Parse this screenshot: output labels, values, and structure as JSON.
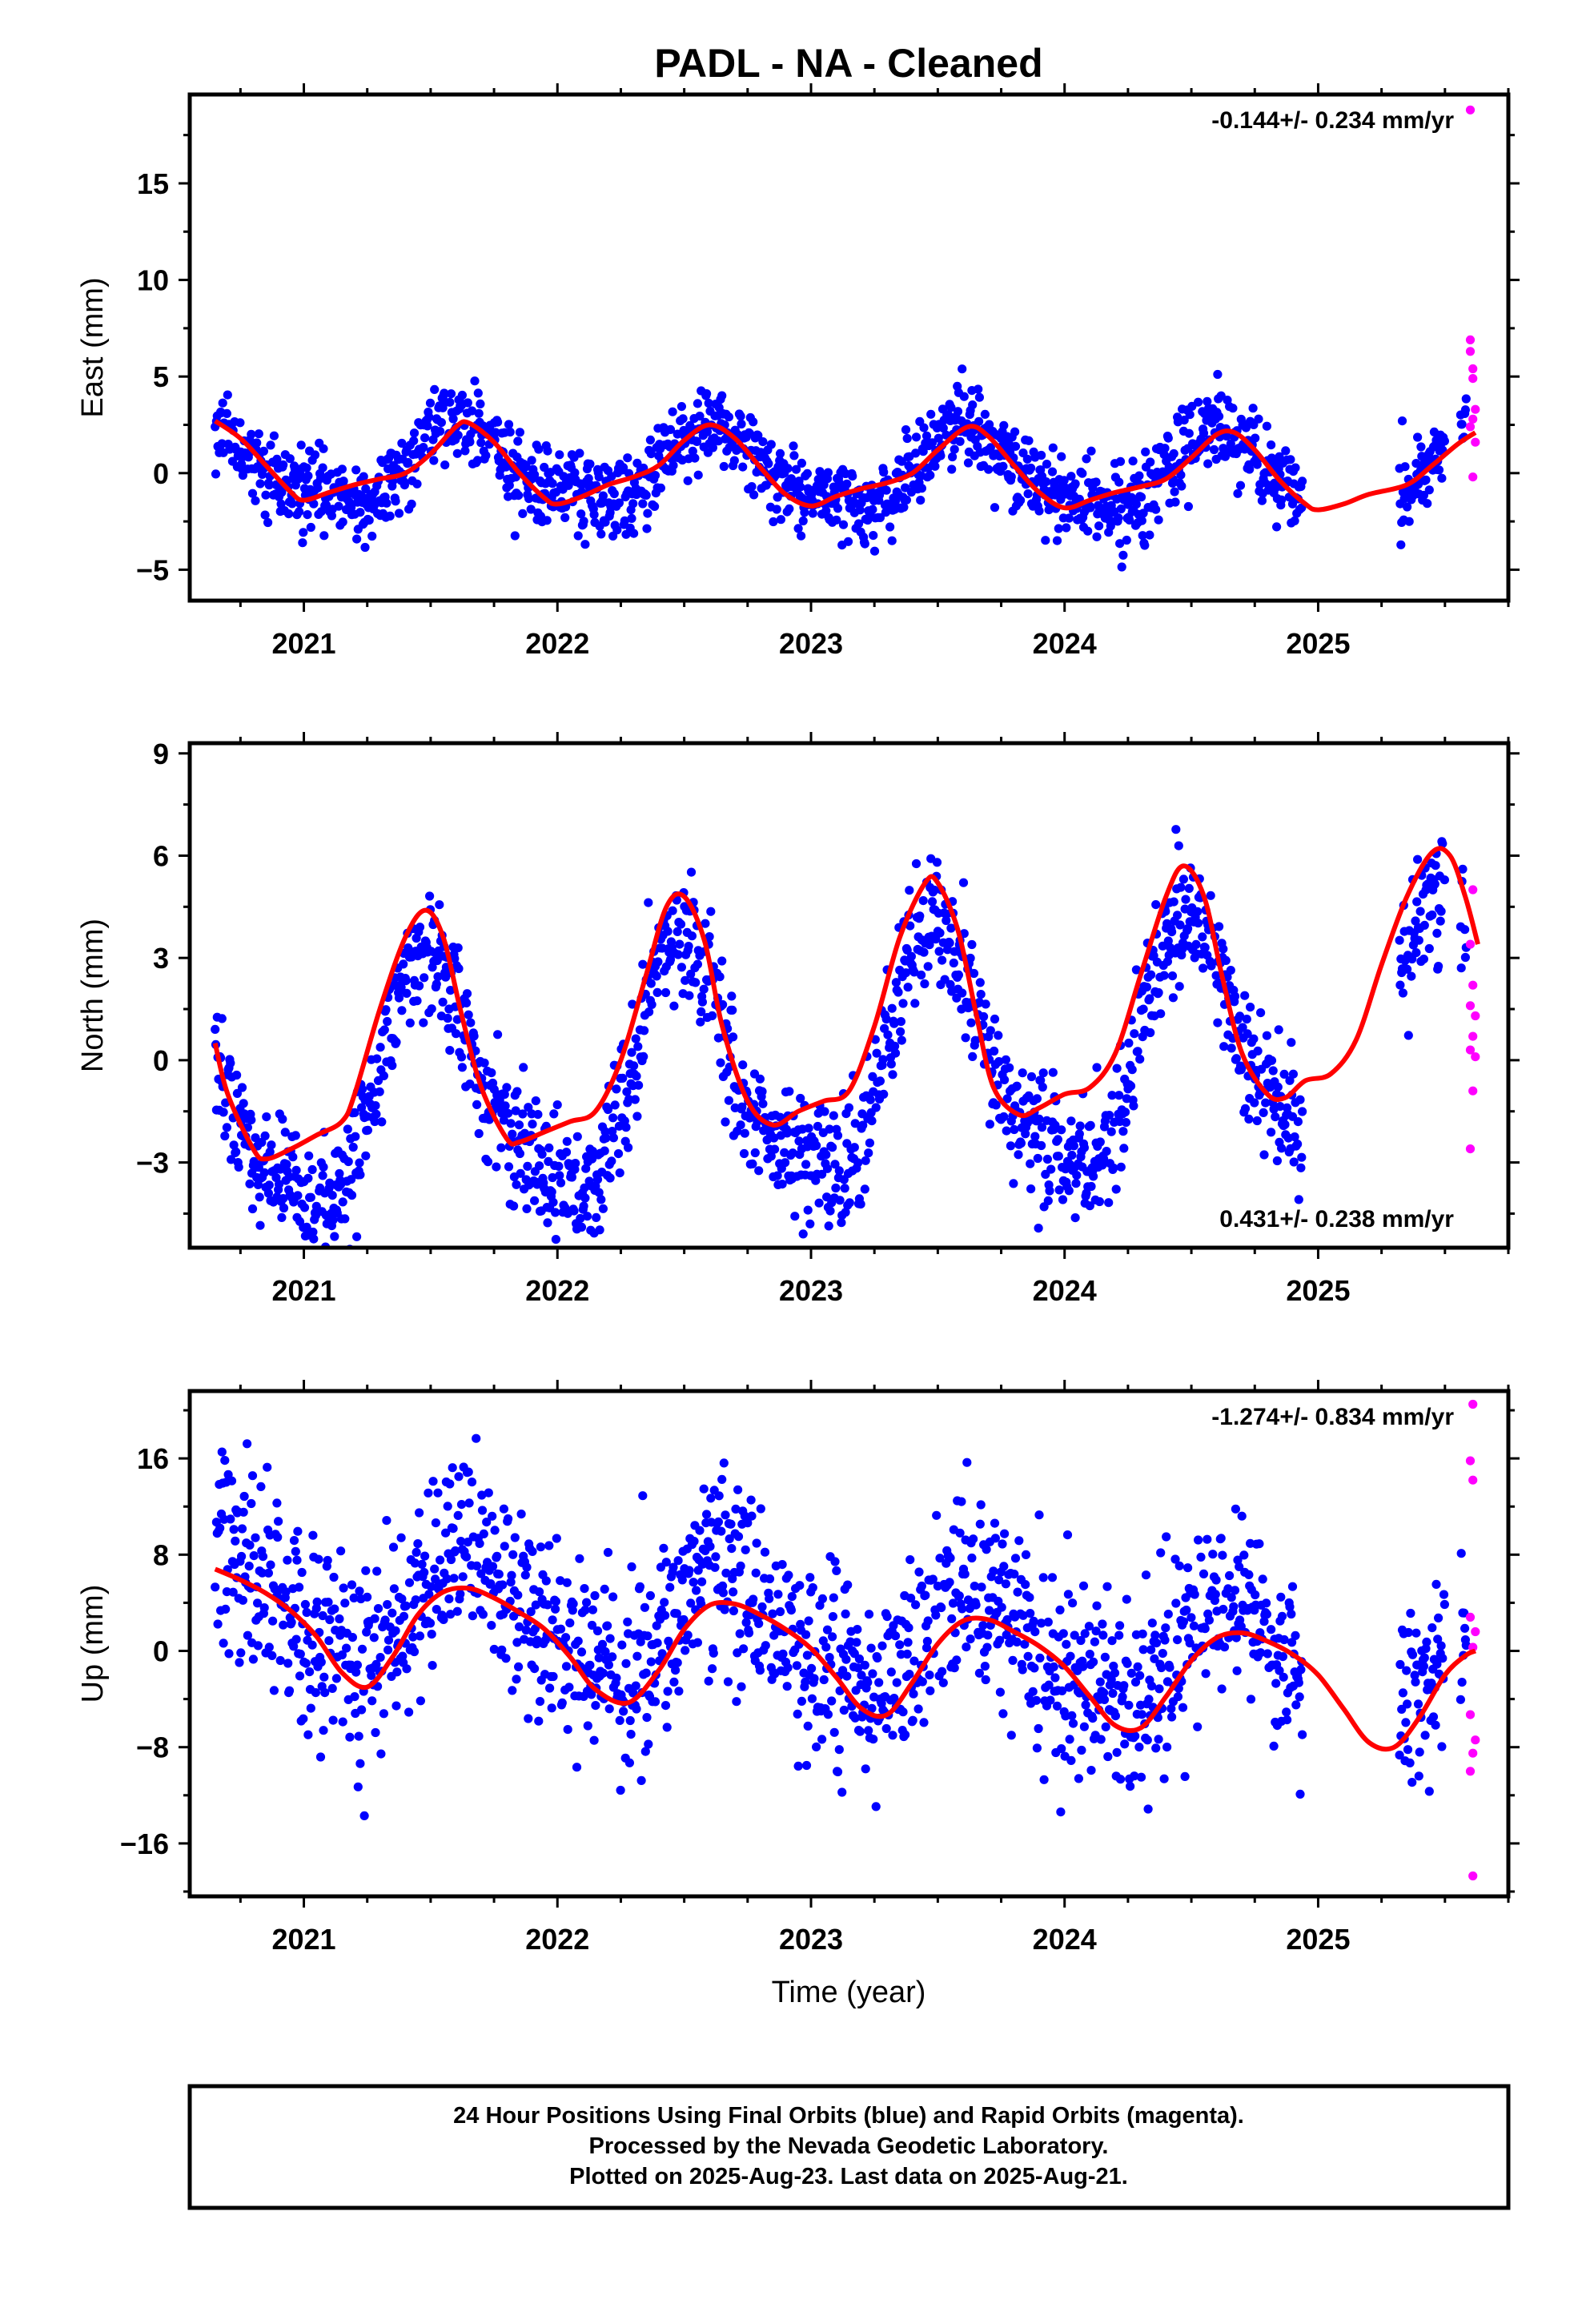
{
  "title": "PADL  - NA - Cleaned",
  "xlabel": "Time (year)",
  "footer": [
    "24 Hour Positions Using Final Orbits (blue) and Rapid Orbits (magenta).",
    "Processed by the Nevada Geodetic Laboratory.",
    "Plotted on 2025-Aug-23. Last data on 2025-Aug-21."
  ],
  "colors": {
    "final": "#0000ff",
    "rapid": "#ff00ff",
    "fit": "#ff0000",
    "frame": "#000000"
  },
  "chart_data": [
    {
      "type": "scatter",
      "ylabel": "East (mm)",
      "rate": "-0.144+/- 0.234 mm/yr",
      "rate_position": "top-right",
      "xlim": [
        2020.55,
        2025.75
      ],
      "ylim": [
        -6.6,
        19.6
      ],
      "xticks": [
        2021,
        2022,
        2023,
        2024,
        2025
      ],
      "xtick_labels": [
        "2021",
        "2022",
        "2023",
        "2024",
        "2025"
      ],
      "yticks": [
        -5,
        0,
        5,
        10,
        15
      ],
      "ytick_labels": [
        "−5",
        "0",
        "5",
        "10",
        "15"
      ],
      "model": {
        "t0": 2020.65,
        "offset": 0.12,
        "trend": -0.144,
        "annual_amp": 1.9,
        "annual_peak": 0.62,
        "semiannual_amp": 0.55,
        "noise": 1.05
      },
      "rapid_points": [
        [
          2025.6,
          18.8
        ],
        [
          2025.6,
          6.9
        ],
        [
          2025.6,
          6.3
        ],
        [
          2025.61,
          5.4
        ],
        [
          2025.61,
          4.9
        ],
        [
          2025.62,
          3.3
        ],
        [
          2025.61,
          2.8
        ],
        [
          2025.6,
          2.4
        ],
        [
          2025.62,
          1.6
        ],
        [
          2025.61,
          -0.2
        ]
      ],
      "fit_curve": [
        [
          2020.65,
          2.7
        ],
        [
          2020.75,
          1.8
        ],
        [
          2020.85,
          0.4
        ],
        [
          2020.95,
          -1.0
        ],
        [
          2021.0,
          -1.4
        ],
        [
          2021.1,
          -1.0
        ],
        [
          2021.2,
          -0.6
        ],
        [
          2021.3,
          -0.3
        ],
        [
          2021.4,
          0.0
        ],
        [
          2021.5,
          1.0
        ],
        [
          2021.6,
          2.4
        ],
        [
          2021.65,
          2.6
        ],
        [
          2021.75,
          1.6
        ],
        [
          2021.85,
          0.0
        ],
        [
          2021.95,
          -1.3
        ],
        [
          2022.0,
          -1.6
        ],
        [
          2022.1,
          -1.2
        ],
        [
          2022.2,
          -0.6
        ],
        [
          2022.3,
          -0.2
        ],
        [
          2022.4,
          0.4
        ],
        [
          2022.5,
          1.7
        ],
        [
          2022.6,
          2.5
        ],
        [
          2022.7,
          1.8
        ],
        [
          2022.8,
          0.3
        ],
        [
          2022.9,
          -1.1
        ],
        [
          2023.0,
          -1.7
        ],
        [
          2023.1,
          -1.2
        ],
        [
          2023.2,
          -0.8
        ],
        [
          2023.3,
          -0.5
        ],
        [
          2023.4,
          0.0
        ],
        [
          2023.5,
          1.2
        ],
        [
          2023.62,
          2.4
        ],
        [
          2023.7,
          1.9
        ],
        [
          2023.8,
          0.4
        ],
        [
          2023.9,
          -1.0
        ],
        [
          2024.0,
          -1.8
        ],
        [
          2024.1,
          -1.4
        ],
        [
          2024.2,
          -1.0
        ],
        [
          2024.3,
          -0.7
        ],
        [
          2024.4,
          -0.3
        ],
        [
          2024.5,
          0.8
        ],
        [
          2024.6,
          2.0
        ],
        [
          2024.67,
          2.1
        ],
        [
          2024.75,
          1.2
        ],
        [
          2024.85,
          -0.4
        ],
        [
          2024.95,
          -1.6
        ],
        [
          2025.0,
          -1.9
        ],
        [
          2025.1,
          -1.6
        ],
        [
          2025.2,
          -1.1
        ],
        [
          2025.35,
          -0.6
        ],
        [
          2025.45,
          0.4
        ],
        [
          2025.55,
          1.5
        ],
        [
          2025.62,
          2.1
        ]
      ]
    },
    {
      "type": "scatter",
      "ylabel": "North (mm)",
      "rate": "0.431+/- 0.238 mm/yr",
      "rate_position": "bottom-right",
      "xlim": [
        2020.55,
        2025.75
      ],
      "ylim": [
        -5.5,
        9.3
      ],
      "xticks": [
        2021,
        2022,
        2023,
        2024,
        2025
      ],
      "xtick_labels": [
        "2021",
        "2022",
        "2023",
        "2024",
        "2025"
      ],
      "yticks": [
        -3,
        0,
        3,
        6,
        9
      ],
      "ytick_labels": [
        "−3",
        "0",
        "3",
        "6",
        "9"
      ],
      "model": {
        "t0": 2020.65,
        "offset": -0.4,
        "trend": 0.431,
        "annual_amp": 3.5,
        "annual_peak": 0.5,
        "semiannual_amp": 0.9,
        "noise": 0.95
      },
      "rapid_points": [
        [
          2025.61,
          5.0
        ],
        [
          2025.6,
          3.4
        ],
        [
          2025.61,
          2.2
        ],
        [
          2025.6,
          1.6
        ],
        [
          2025.62,
          1.3
        ],
        [
          2025.61,
          0.7
        ],
        [
          2025.6,
          0.3
        ],
        [
          2025.62,
          0.1
        ],
        [
          2025.61,
          -0.9
        ],
        [
          2025.6,
          -2.6
        ]
      ],
      "fit_curve": [
        [
          2020.65,
          0.5
        ],
        [
          2020.7,
          -1.0
        ],
        [
          2020.8,
          -2.6
        ],
        [
          2020.85,
          -2.9
        ],
        [
          2020.95,
          -2.6
        ],
        [
          2021.05,
          -2.2
        ],
        [
          2021.15,
          -1.8
        ],
        [
          2021.2,
          -1.0
        ],
        [
          2021.3,
          1.5
        ],
        [
          2021.4,
          3.6
        ],
        [
          2021.48,
          4.4
        ],
        [
          2021.55,
          3.6
        ],
        [
          2021.62,
          1.4
        ],
        [
          2021.7,
          -0.8
        ],
        [
          2021.8,
          -2.3
        ],
        [
          2021.85,
          -2.4
        ],
        [
          2021.95,
          -2.1
        ],
        [
          2022.05,
          -1.8
        ],
        [
          2022.15,
          -1.5
        ],
        [
          2022.25,
          0.0
        ],
        [
          2022.35,
          2.5
        ],
        [
          2022.43,
          4.5
        ],
        [
          2022.5,
          4.8
        ],
        [
          2022.58,
          3.5
        ],
        [
          2022.65,
          1.0
        ],
        [
          2022.75,
          -1.2
        ],
        [
          2022.85,
          -1.9
        ],
        [
          2022.95,
          -1.5
        ],
        [
          2023.05,
          -1.2
        ],
        [
          2023.15,
          -0.9
        ],
        [
          2023.25,
          1.0
        ],
        [
          2023.35,
          3.6
        ],
        [
          2023.45,
          5.2
        ],
        [
          2023.5,
          5.2
        ],
        [
          2023.58,
          3.8
        ],
        [
          2023.65,
          1.4
        ],
        [
          2023.72,
          -0.8
        ],
        [
          2023.82,
          -1.6
        ],
        [
          2023.9,
          -1.4
        ],
        [
          2024.0,
          -1.0
        ],
        [
          2024.1,
          -0.8
        ],
        [
          2024.2,
          0.2
        ],
        [
          2024.3,
          2.5
        ],
        [
          2024.4,
          4.8
        ],
        [
          2024.47,
          5.7
        ],
        [
          2024.55,
          4.8
        ],
        [
          2024.62,
          2.5
        ],
        [
          2024.7,
          0.2
        ],
        [
          2024.8,
          -1.0
        ],
        [
          2024.87,
          -1.1
        ],
        [
          2024.95,
          -0.6
        ],
        [
          2025.05,
          -0.4
        ],
        [
          2025.15,
          0.6
        ],
        [
          2025.25,
          2.8
        ],
        [
          2025.35,
          4.8
        ],
        [
          2025.45,
          6.1
        ],
        [
          2025.52,
          6.0
        ],
        [
          2025.58,
          4.8
        ],
        [
          2025.63,
          3.4
        ]
      ]
    },
    {
      "type": "scatter",
      "ylabel": "Up (mm)",
      "rate": "-1.274+/- 0.834 mm/yr",
      "rate_position": "top-right",
      "xlim": [
        2020.55,
        2025.75
      ],
      "ylim": [
        -20.4,
        21.6
      ],
      "xticks": [
        2021,
        2022,
        2023,
        2024,
        2025
      ],
      "xtick_labels": [
        "2021",
        "2022",
        "2023",
        "2024",
        "2025"
      ],
      "yticks": [
        -16,
        -8,
        0,
        8,
        16
      ],
      "ytick_labels": [
        "−16",
        "−8",
        "0",
        "8",
        "16"
      ],
      "model": {
        "t0": 2020.65,
        "offset": 1.5,
        "trend": -1.274,
        "annual_amp": 4.3,
        "annual_peak": 0.66,
        "semiannual_amp": 0.8,
        "noise": 4.0
      },
      "rapid_points": [
        [
          2025.61,
          20.5
        ],
        [
          2025.6,
          15.8
        ],
        [
          2025.61,
          14.2
        ],
        [
          2025.6,
          2.8
        ],
        [
          2025.62,
          1.6
        ],
        [
          2025.61,
          0.3
        ],
        [
          2025.6,
          -5.3
        ],
        [
          2025.62,
          -7.4
        ],
        [
          2025.61,
          -8.5
        ],
        [
          2025.6,
          -10.0
        ],
        [
          2025.61,
          -18.7
        ]
      ],
      "fit_curve": [
        [
          2020.65,
          6.8
        ],
        [
          2020.75,
          5.9
        ],
        [
          2020.85,
          4.8
        ],
        [
          2020.95,
          3.3
        ],
        [
          2021.05,
          1.2
        ],
        [
          2021.15,
          -1.8
        ],
        [
          2021.25,
          -3.0
        ],
        [
          2021.35,
          -0.5
        ],
        [
          2021.45,
          3.0
        ],
        [
          2021.55,
          4.9
        ],
        [
          2021.65,
          5.2
        ],
        [
          2021.75,
          4.4
        ],
        [
          2021.85,
          3.2
        ],
        [
          2021.95,
          1.8
        ],
        [
          2022.05,
          -0.5
        ],
        [
          2022.15,
          -3.2
        ],
        [
          2022.28,
          -4.3
        ],
        [
          2022.4,
          -1.6
        ],
        [
          2022.5,
          1.8
        ],
        [
          2022.6,
          3.8
        ],
        [
          2022.7,
          3.9
        ],
        [
          2022.8,
          3.0
        ],
        [
          2022.9,
          1.8
        ],
        [
          2023.0,
          0.2
        ],
        [
          2023.1,
          -2.2
        ],
        [
          2023.2,
          -4.8
        ],
        [
          2023.3,
          -5.3
        ],
        [
          2023.4,
          -2.6
        ],
        [
          2023.5,
          0.6
        ],
        [
          2023.6,
          2.5
        ],
        [
          2023.7,
          2.6
        ],
        [
          2023.8,
          1.6
        ],
        [
          2023.9,
          0.4
        ],
        [
          2024.0,
          -1.3
        ],
        [
          2024.1,
          -3.8
        ],
        [
          2024.2,
          -6.2
        ],
        [
          2024.3,
          -6.4
        ],
        [
          2024.4,
          -3.8
        ],
        [
          2024.5,
          -0.8
        ],
        [
          2024.6,
          1.1
        ],
        [
          2024.7,
          1.5
        ],
        [
          2024.8,
          0.8
        ],
        [
          2024.9,
          -0.3
        ],
        [
          2025.0,
          -2.0
        ],
        [
          2025.1,
          -4.8
        ],
        [
          2025.2,
          -7.6
        ],
        [
          2025.3,
          -8.0
        ],
        [
          2025.4,
          -5.5
        ],
        [
          2025.5,
          -2.0
        ],
        [
          2025.58,
          -0.4
        ],
        [
          2025.62,
          0.0
        ]
      ]
    }
  ]
}
